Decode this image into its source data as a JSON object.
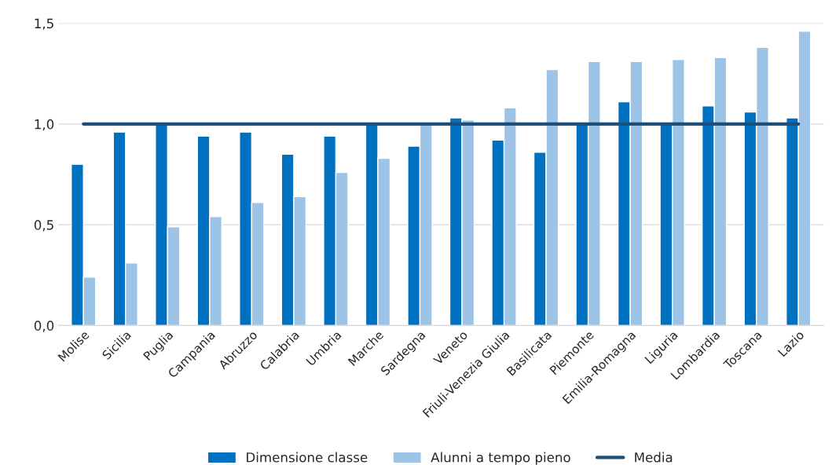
{
  "chart_data": {
    "type": "bar",
    "categories": [
      "Molise",
      "Sicilia",
      "Puglia",
      "Campania",
      "Abruzzo",
      "Calabria",
      "Umbria",
      "Marche",
      "Sardegna",
      "Veneto",
      "Friuli-Venezia Giulia",
      "Basilicata",
      "Piemonte",
      "Emilia-Romagna",
      "Liguria",
      "Lombardia",
      "Toscana",
      "Lazio"
    ],
    "series": [
      {
        "name": "Dimensione classe",
        "color": "#0070c0",
        "values": [
          0.8,
          0.96,
          1.0,
          0.94,
          0.96,
          0.85,
          0.94,
          1.0,
          0.89,
          1.03,
          0.92,
          0.86,
          1.0,
          1.11,
          1.0,
          1.09,
          1.06,
          1.03
        ]
      },
      {
        "name": "Alunni a tempo pieno",
        "color": "#9dc3e6",
        "values": [
          0.24,
          0.31,
          0.49,
          0.54,
          0.61,
          0.64,
          0.76,
          0.83,
          1.0,
          1.02,
          1.08,
          1.27,
          1.31,
          1.31,
          1.32,
          1.33,
          1.38,
          1.46
        ]
      },
      {
        "name": "Media",
        "type": "line",
        "color": "#1f4e79",
        "values": [
          1.0,
          1.0,
          1.0,
          1.0,
          1.0,
          1.0,
          1.0,
          1.0,
          1.0,
          1.0,
          1.0,
          1.0,
          1.0,
          1.0,
          1.0,
          1.0,
          1.0,
          1.0
        ]
      }
    ],
    "ylim": [
      0,
      1.5
    ],
    "yticks": [
      {
        "value": 0,
        "label": "0,0"
      },
      {
        "value": 0.5,
        "label": "0,5"
      },
      {
        "value": 1.0,
        "label": "1,0"
      },
      {
        "value": 1.5,
        "label": "1,5"
      }
    ],
    "grid": "y",
    "legend": "bottom"
  }
}
